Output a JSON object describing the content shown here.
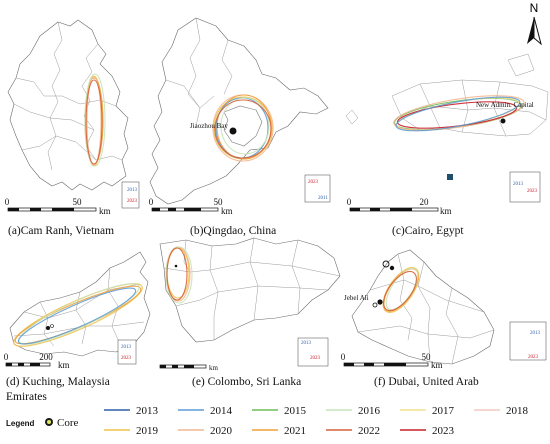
{
  "north": {
    "label": "N"
  },
  "panels": {
    "a": {
      "label": "(a)Cam Ranh, Vietnam",
      "scale": {
        "t0": "0",
        "t1": "50",
        "unit": "km"
      }
    },
    "b": {
      "label": "(b)Qingdao, China",
      "scale": {
        "t0": "0",
        "t1": "50",
        "unit": "km"
      },
      "place": "Jiaozhou Bay"
    },
    "c": {
      "label": "(c)Cairo, Egypt",
      "scale": {
        "t0": "0",
        "t1": "20",
        "unit": "km"
      },
      "place": "New Admin. Capital"
    },
    "d": {
      "label": "(d) Kuching, Malaysia",
      "scale": {
        "t0": "0",
        "t1": "200",
        "unit": "km"
      }
    },
    "e": {
      "label": "(e) Colombo, Sri Lanka",
      "scale": {
        "unit": "km"
      }
    },
    "f": {
      "label": "(f) Dubai, United Arab",
      "scale": {
        "t0": "0",
        "t1": "50",
        "unit": "km"
      },
      "place": "Jebel Ali"
    },
    "extra_label": "Emirates"
  },
  "inset": {
    "year_a": "2013",
    "year_b": "2023",
    "year_b_short": "2011"
  },
  "legend": {
    "title": "Legend",
    "core_label": "Core",
    "years": [
      {
        "year": "2013",
        "color": "#2f5fa8"
      },
      {
        "year": "2014",
        "color": "#5b9bd5"
      },
      {
        "year": "2015",
        "color": "#6cbf5a"
      },
      {
        "year": "2016",
        "color": "#c7e3b8"
      },
      {
        "year": "2017",
        "color": "#f3e08a"
      },
      {
        "year": "2018",
        "color": "#f3c9c0"
      },
      {
        "year": "2019",
        "color": "#f0c24a"
      },
      {
        "year": "2020",
        "color": "#f2b890"
      },
      {
        "year": "2021",
        "color": "#f2a03a"
      },
      {
        "year": "2022",
        "color": "#d6603a"
      },
      {
        "year": "2023",
        "color": "#c8202a"
      }
    ]
  }
}
